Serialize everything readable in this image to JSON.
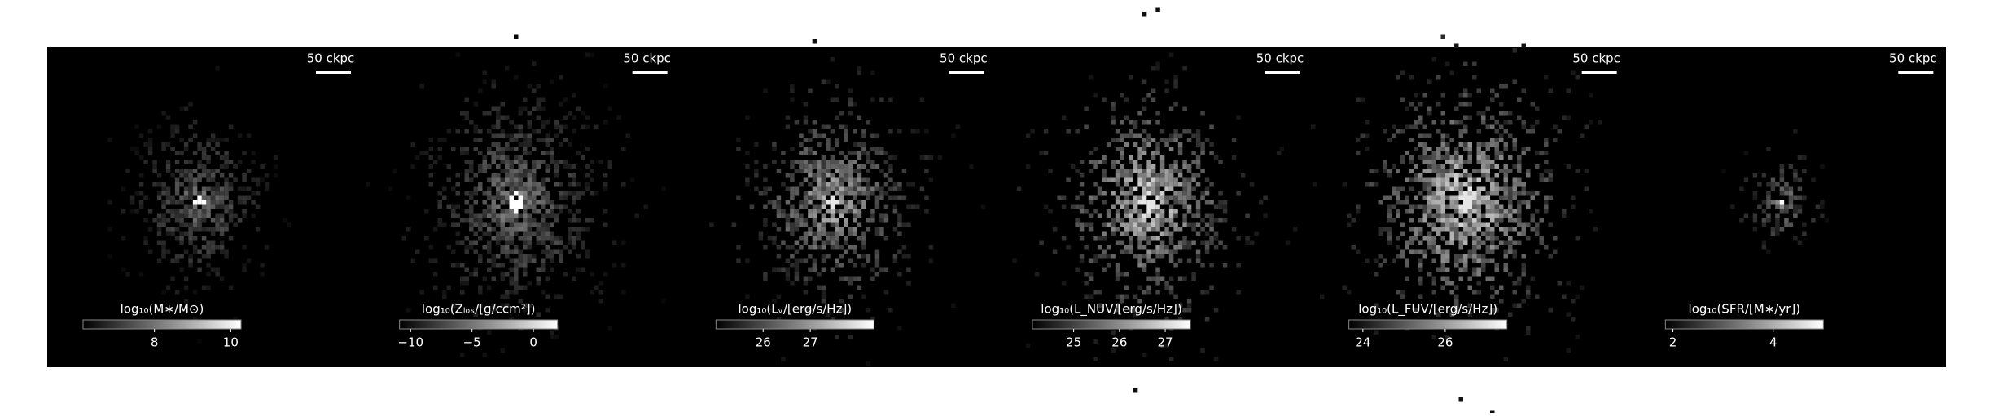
{
  "panels": [
    {
      "scale_bar": "50 ckpc",
      "colorbar": {
        "label": "log₁₀(M∗/M⊙)",
        "lim": [
          6.13,
          10.27
        ],
        "ticks": [
          8,
          10
        ]
      }
    },
    {
      "scale_bar": "50 ckpc",
      "colorbar": {
        "label": "log₁₀(Zₗₒₛ/[g/ccm²])",
        "lim": [
          -10.9,
          1.96
        ],
        "ticks": [
          {
            "value": -10,
            "label": "−10"
          },
          {
            "value": -5,
            "label": "−5"
          },
          0
        ]
      }
    },
    {
      "scale_bar": "50 ckpc",
      "colorbar": {
        "label": "log₁₀(Lᵥ/[erg/s/Hz])",
        "lim": [
          25.0,
          28.35
        ],
        "ticks": [
          26,
          27
        ]
      }
    },
    {
      "scale_bar": "50 ckpc",
      "colorbar": {
        "label": "log₁₀(L_NUV/[erg/s/Hz])",
        "lim": [
          24.1,
          27.55
        ],
        "ticks": [
          25,
          26,
          27
        ]
      }
    },
    {
      "scale_bar": "50 ckpc",
      "colorbar": {
        "label": "log₁₀(L_FUV/[erg/s/Hz])",
        "lim": [
          23.66,
          27.5
        ],
        "ticks": [
          24,
          26
        ]
      }
    },
    {
      "scale_bar": "50 ckpc",
      "colorbar": {
        "label": "log₁₀(SFR/[M∗/yr])",
        "lim": [
          1.85,
          5.0
        ],
        "ticks": [
          2,
          4
        ]
      }
    }
  ]
}
